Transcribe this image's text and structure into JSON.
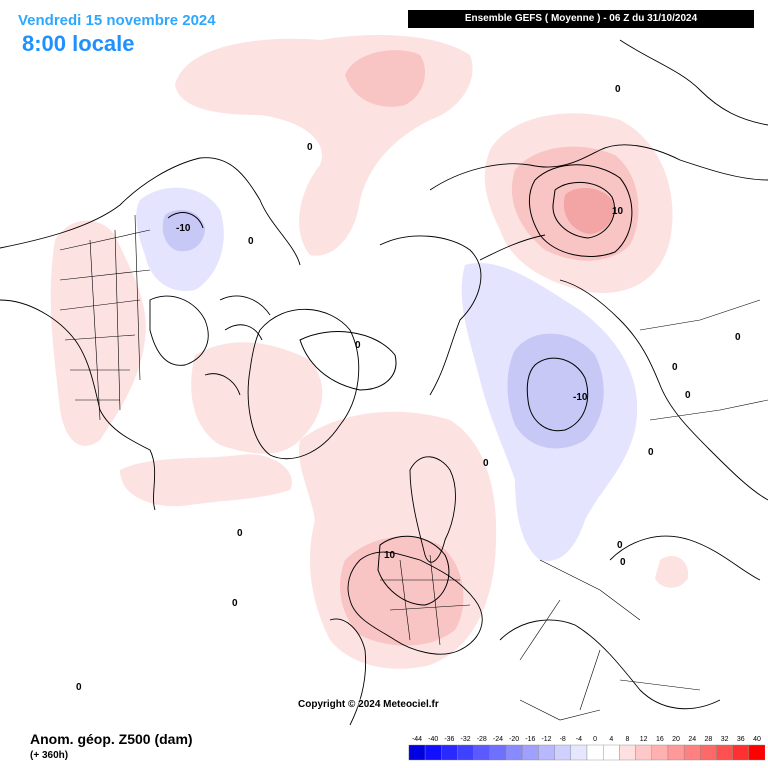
{
  "title": {
    "date": "Vendredi 15 novembre 2024",
    "time": "8:00 locale"
  },
  "header": "Ensemble GEFS  ( Moyenne )  -  06 Z du 31/10/2024",
  "variable": "Anom. géop. Z500 (dam)",
  "lead_time": "(+ 360h)",
  "copyright": "Copyright © 2024 Meteociel.fr",
  "legend": {
    "ticks": [
      "-44",
      "-40",
      "-36",
      "-32",
      "-28",
      "-24",
      "-20",
      "-16",
      "-12",
      "-8",
      "-4",
      "0",
      "4",
      "8",
      "12",
      "16",
      "20",
      "24",
      "28",
      "32",
      "36",
      "40"
    ],
    "colors": [
      "#0000e0",
      "#1010ff",
      "#2a2aff",
      "#4040ff",
      "#5a5aff",
      "#7070ff",
      "#8a8aff",
      "#a0a0ff",
      "#b8b8ff",
      "#d0d0ff",
      "#e6e6ff",
      "#ffffff",
      "#ffffff",
      "#ffe0e0",
      "#ffc8c8",
      "#ffb0b0",
      "#ff9898",
      "#ff8080",
      "#ff6868",
      "#ff5050",
      "#ff3030",
      "#ff0000"
    ]
  },
  "contour_labels": {
    "zero": "0",
    "pos10": "10",
    "neg10": "-10"
  },
  "colors": {
    "anomaly_pos_light": "#fde2e2",
    "anomaly_pos_mid": "#f9c4c4",
    "anomaly_pos_strong": "#f3a4a4",
    "anomaly_neg_light": "#e4e4ff",
    "anomaly_neg_mid": "#c8c8f6",
    "coast": "#000000"
  }
}
